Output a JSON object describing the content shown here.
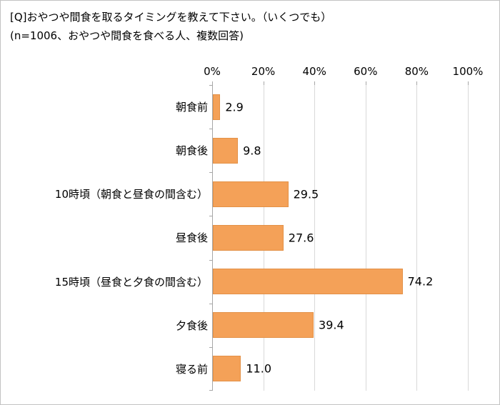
{
  "title_line1": "[Q]おやつや間食を取るタイミングを教えて下さい。（いくつでも）",
  "title_line2": "(n=1006、おやつや間食を食べる人、複数回答)",
  "chart_data": {
    "type": "bar",
    "orientation": "horizontal",
    "title": "[Q]おやつや間食を取るタイミングを教えて下さい。（いくつでも）",
    "subtitle": "(n=1006、おやつや間食を食べる人、複数回答)",
    "categories": [
      "朝食前",
      "朝食後",
      "10時頃（朝食と昼食の間含む）",
      "昼食後",
      "15時頃（昼食と夕食の間含む）",
      "夕食後",
      "寝る前"
    ],
    "values": [
      2.9,
      9.8,
      29.5,
      27.6,
      74.2,
      39.4,
      11.0
    ],
    "value_labels": [
      "2.9",
      "9.8",
      "29.5",
      "27.6",
      "74.2",
      "39.4",
      "11.0"
    ],
    "xlim": [
      0,
      100
    ],
    "x_ticks": [
      "0%",
      "20%",
      "40%",
      "60%",
      "80%",
      "100%"
    ],
    "x_tick_values": [
      0,
      20,
      40,
      60,
      80,
      100
    ],
    "grid": true,
    "legend": "none",
    "bar_color": "#f4a158",
    "bar_border_color": "#e39147",
    "gridline_color": "#d9d9d9",
    "axis_color": "#a6a6a6"
  }
}
